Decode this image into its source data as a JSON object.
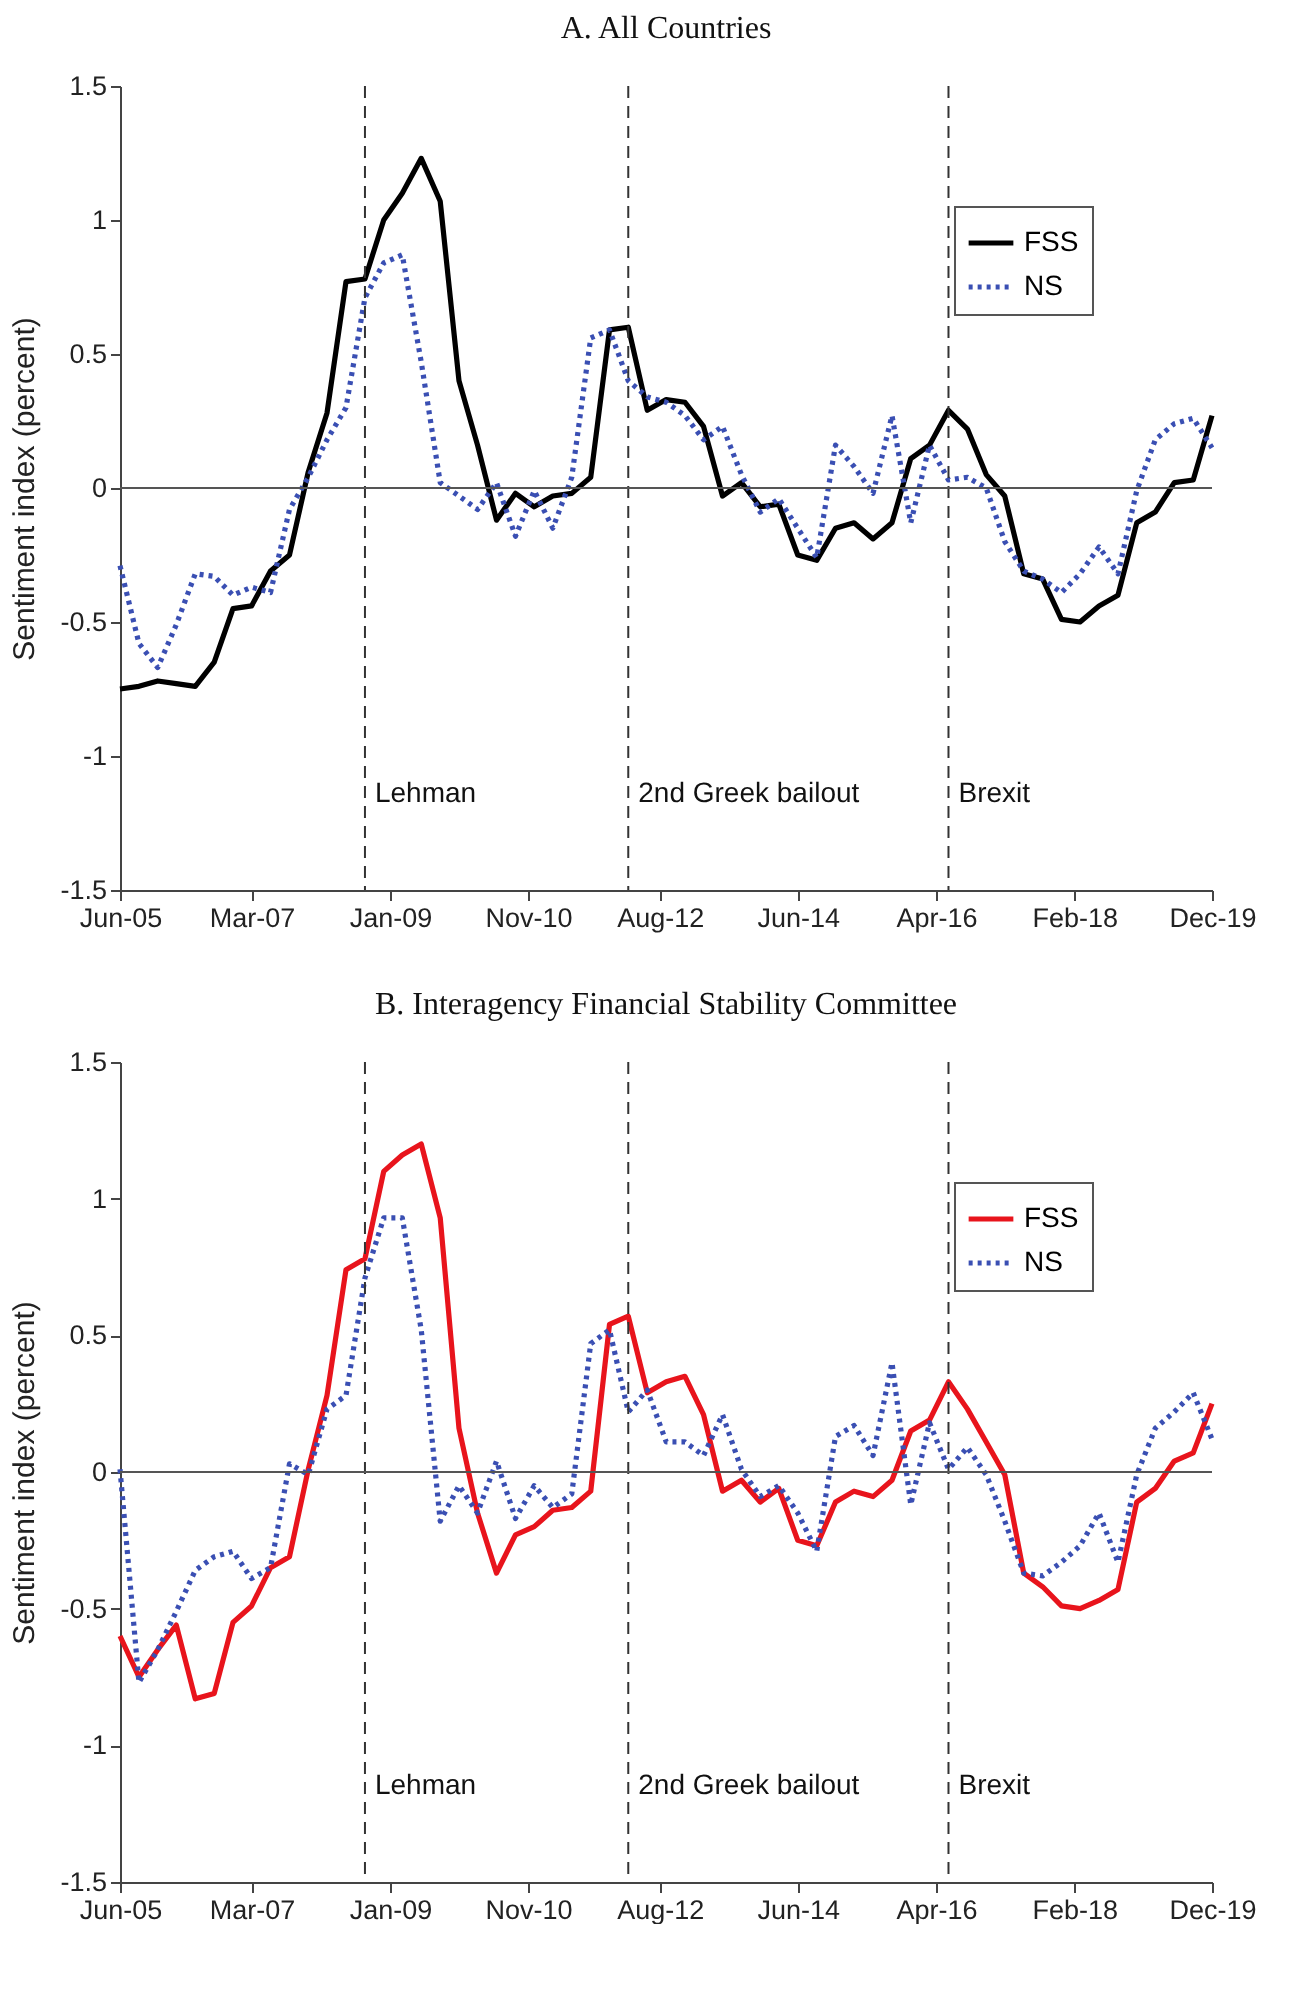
{
  "chart_data": [
    {
      "type": "line",
      "title": "A. All Countries",
      "ylabel": "Sentiment index (percent)",
      "x": [
        "2005-06",
        "2005-09",
        "2005-12",
        "2006-03",
        "2006-06",
        "2006-09",
        "2006-12",
        "2007-03",
        "2007-06",
        "2007-09",
        "2007-12",
        "2008-03",
        "2008-06",
        "2008-09",
        "2008-12",
        "2009-03",
        "2009-06",
        "2009-09",
        "2009-12",
        "2010-03",
        "2010-06",
        "2010-09",
        "2010-12",
        "2011-03",
        "2011-06",
        "2011-09",
        "2011-12",
        "2012-03",
        "2012-06",
        "2012-09",
        "2012-12",
        "2013-03",
        "2013-06",
        "2013-09",
        "2013-12",
        "2014-03",
        "2014-06",
        "2014-09",
        "2014-12",
        "2015-03",
        "2015-06",
        "2015-09",
        "2015-12",
        "2016-03",
        "2016-06",
        "2016-09",
        "2016-12",
        "2017-03",
        "2017-06",
        "2017-09",
        "2017-12",
        "2018-03",
        "2018-06",
        "2018-09",
        "2018-12",
        "2019-03",
        "2019-06",
        "2019-09",
        "2019-12"
      ],
      "series": [
        {
          "name": "FSS",
          "color": "#000000",
          "line_style": "solid",
          "values": [
            -0.75,
            -0.74,
            -0.72,
            -0.73,
            -0.74,
            -0.65,
            -0.45,
            -0.44,
            -0.31,
            -0.25,
            0.06,
            0.28,
            0.77,
            0.78,
            1.0,
            1.1,
            1.23,
            1.07,
            0.4,
            0.16,
            -0.12,
            -0.02,
            -0.07,
            -0.03,
            -0.02,
            0.04,
            0.59,
            0.6,
            0.29,
            0.33,
            0.32,
            0.23,
            -0.03,
            0.02,
            -0.07,
            -0.06,
            -0.25,
            -0.27,
            -0.15,
            -0.13,
            -0.19,
            -0.13,
            0.11,
            0.16,
            0.29,
            0.22,
            0.05,
            -0.03,
            -0.32,
            -0.34,
            -0.49,
            -0.5,
            -0.44,
            -0.4,
            -0.13,
            -0.09,
            0.02,
            0.03,
            0.27
          ]
        },
        {
          "name": "NS",
          "color": "#3a4fb3",
          "line_style": "dotted",
          "values": [
            -0.29,
            -0.58,
            -0.67,
            -0.51,
            -0.32,
            -0.33,
            -0.4,
            -0.37,
            -0.39,
            -0.08,
            0.04,
            0.18,
            0.3,
            0.71,
            0.84,
            0.87,
            0.47,
            0.02,
            -0.03,
            -0.08,
            0.02,
            -0.18,
            -0.01,
            -0.15,
            0.04,
            0.56,
            0.59,
            0.4,
            0.34,
            0.32,
            0.27,
            0.18,
            0.23,
            0.05,
            -0.09,
            -0.04,
            -0.15,
            -0.26,
            0.16,
            0.08,
            -0.02,
            0.27,
            -0.13,
            0.16,
            0.03,
            0.04,
            0.0,
            -0.2,
            -0.31,
            -0.34,
            -0.39,
            -0.32,
            -0.22,
            -0.32,
            -0.01,
            0.18,
            0.24,
            0.26,
            0.15
          ]
        }
      ],
      "xlim": [
        "2005-06",
        "2019-12"
      ],
      "xticks": [
        {
          "value": "2005-06",
          "label": "Jun-05"
        },
        {
          "value": "2007-03",
          "label": "Mar-07"
        },
        {
          "value": "2009-01",
          "label": "Jan-09"
        },
        {
          "value": "2010-11",
          "label": "Nov-10"
        },
        {
          "value": "2012-08",
          "label": "Aug-12"
        },
        {
          "value": "2014-06",
          "label": "Jun-14"
        },
        {
          "value": "2016-04",
          "label": "Apr-16"
        },
        {
          "value": "2018-02",
          "label": "Feb-18"
        },
        {
          "value": "2019-12",
          "label": "Dec-19"
        }
      ],
      "ylim": [
        -1.5,
        1.5
      ],
      "yticks": [
        -1.5,
        -1,
        -0.5,
        0,
        0.5,
        1,
        1.5
      ],
      "ref_lines": [
        {
          "axis": "y",
          "value": 0,
          "color": "#555555",
          "line_style": "solid"
        },
        {
          "axis": "x",
          "value": "2008-09",
          "label": "Lehman",
          "color": "#333333",
          "line_style": "dashed"
        },
        {
          "axis": "x",
          "value": "2012-03",
          "label": "2nd Greek bailout",
          "color": "#333333",
          "line_style": "dashed"
        },
        {
          "axis": "x",
          "value": "2016-06",
          "label": "Brexit",
          "color": "#333333",
          "line_style": "dashed"
        }
      ],
      "legend": "top right"
    },
    {
      "type": "line",
      "title": "B. Interagency Financial Stability Committee",
      "ylabel": "Sentiment index (percent)",
      "x": [
        "2005-06",
        "2005-09",
        "2005-12",
        "2006-03",
        "2006-06",
        "2006-09",
        "2006-12",
        "2007-03",
        "2007-06",
        "2007-09",
        "2007-12",
        "2008-03",
        "2008-06",
        "2008-09",
        "2008-12",
        "2009-03",
        "2009-06",
        "2009-09",
        "2009-12",
        "2010-03",
        "2010-06",
        "2010-09",
        "2010-12",
        "2011-03",
        "2011-06",
        "2011-09",
        "2011-12",
        "2012-03",
        "2012-06",
        "2012-09",
        "2012-12",
        "2013-03",
        "2013-06",
        "2013-09",
        "2013-12",
        "2014-03",
        "2014-06",
        "2014-09",
        "2014-12",
        "2015-03",
        "2015-06",
        "2015-09",
        "2015-12",
        "2016-03",
        "2016-06",
        "2016-09",
        "2016-12",
        "2017-03",
        "2017-06",
        "2017-09",
        "2017-12",
        "2018-03",
        "2018-06",
        "2018-09",
        "2018-12",
        "2019-03",
        "2019-06",
        "2019-09",
        "2019-12"
      ],
      "series": [
        {
          "name": "FSS",
          "color": "#e8141c",
          "line_style": "solid",
          "values": [
            -0.6,
            -0.75,
            -0.65,
            -0.56,
            -0.83,
            -0.81,
            -0.55,
            -0.49,
            -0.35,
            -0.31,
            0.01,
            0.28,
            0.74,
            0.78,
            1.1,
            1.16,
            1.2,
            0.93,
            0.16,
            -0.15,
            -0.37,
            -0.23,
            -0.2,
            -0.14,
            -0.13,
            -0.07,
            0.54,
            0.57,
            0.29,
            0.33,
            0.35,
            0.21,
            -0.07,
            -0.03,
            -0.11,
            -0.06,
            -0.25,
            -0.27,
            -0.11,
            -0.07,
            -0.09,
            -0.03,
            0.15,
            0.19,
            0.33,
            0.23,
            0.11,
            -0.01,
            -0.37,
            -0.42,
            -0.49,
            -0.5,
            -0.47,
            -0.43,
            -0.11,
            -0.06,
            0.04,
            0.07,
            0.25
          ]
        },
        {
          "name": "NS",
          "color": "#3a4fb3",
          "line_style": "dotted",
          "values": [
            0.01,
            -0.77,
            -0.65,
            -0.51,
            -0.36,
            -0.31,
            -0.29,
            -0.39,
            -0.35,
            0.03,
            -0.01,
            0.23,
            0.28,
            0.71,
            0.93,
            0.93,
            0.52,
            -0.18,
            -0.05,
            -0.15,
            0.04,
            -0.17,
            -0.05,
            -0.13,
            -0.08,
            0.47,
            0.52,
            0.22,
            0.3,
            0.11,
            0.11,
            0.06,
            0.21,
            0.01,
            -0.09,
            -0.05,
            -0.15,
            -0.29,
            0.13,
            0.17,
            0.06,
            0.4,
            -0.12,
            0.18,
            0.01,
            0.09,
            -0.01,
            -0.18,
            -0.37,
            -0.38,
            -0.33,
            -0.27,
            -0.15,
            -0.33,
            -0.01,
            0.16,
            0.22,
            0.29,
            0.12
          ]
        }
      ],
      "xlim": [
        "2005-06",
        "2019-12"
      ],
      "xticks": [
        {
          "value": "2005-06",
          "label": "Jun-05"
        },
        {
          "value": "2007-03",
          "label": "Mar-07"
        },
        {
          "value": "2009-01",
          "label": "Jan-09"
        },
        {
          "value": "2010-11",
          "label": "Nov-10"
        },
        {
          "value": "2012-08",
          "label": "Aug-12"
        },
        {
          "value": "2014-06",
          "label": "Jun-14"
        },
        {
          "value": "2016-04",
          "label": "Apr-16"
        },
        {
          "value": "2018-02",
          "label": "Feb-18"
        },
        {
          "value": "2019-12",
          "label": "Dec-19"
        }
      ],
      "ylim": [
        -1.5,
        1.5
      ],
      "yticks": [
        -1.5,
        -1,
        -0.5,
        0,
        0.5,
        1,
        1.5
      ],
      "ref_lines": [
        {
          "axis": "y",
          "value": 0,
          "color": "#555555",
          "line_style": "solid"
        },
        {
          "axis": "x",
          "value": "2008-09",
          "label": "Lehman",
          "color": "#333333",
          "line_style": "dashed"
        },
        {
          "axis": "x",
          "value": "2012-03",
          "label": "2nd Greek bailout",
          "color": "#333333",
          "line_style": "dashed"
        },
        {
          "axis": "x",
          "value": "2016-06",
          "label": "Brexit",
          "color": "#333333",
          "line_style": "dashed"
        }
      ],
      "legend": "top right"
    }
  ]
}
